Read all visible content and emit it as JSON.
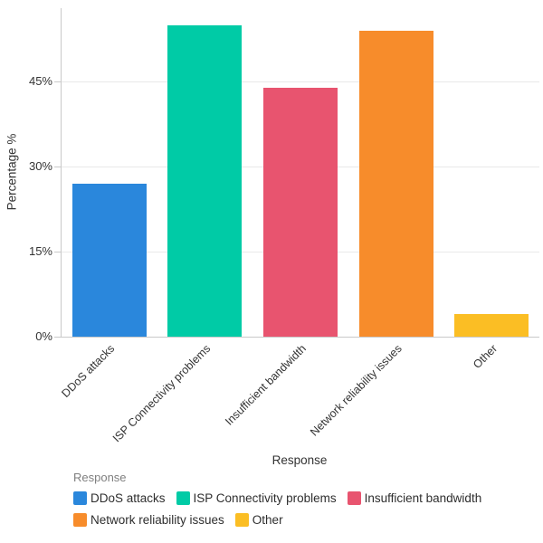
{
  "chart_data": {
    "type": "bar",
    "title": "",
    "xlabel": "Response",
    "ylabel": "Percentage %",
    "categories": [
      "DDoS attacks",
      "ISP Connectivity problems",
      "Insufficient bandwidth",
      "Network reliability issues",
      "Other"
    ],
    "values": [
      27,
      55,
      44,
      54,
      4
    ],
    "colors": [
      "#2A87DC",
      "#00CBA6",
      "#E8546F",
      "#F78C2B",
      "#FBBE24"
    ],
    "yticks": [
      0,
      15,
      30,
      45
    ],
    "ytick_labels": [
      "0%",
      "15%",
      "30%",
      "45%"
    ],
    "ylim": [
      0,
      58
    ],
    "grid": "horizontal",
    "background": "#ffffff",
    "axis_line_color": "#c9c9c9",
    "gridline_color": "#e9e9e9",
    "legend": {
      "title": "Response",
      "position": "bottom",
      "rows": [
        [
          0,
          1,
          2
        ],
        [
          3,
          4
        ]
      ]
    }
  }
}
